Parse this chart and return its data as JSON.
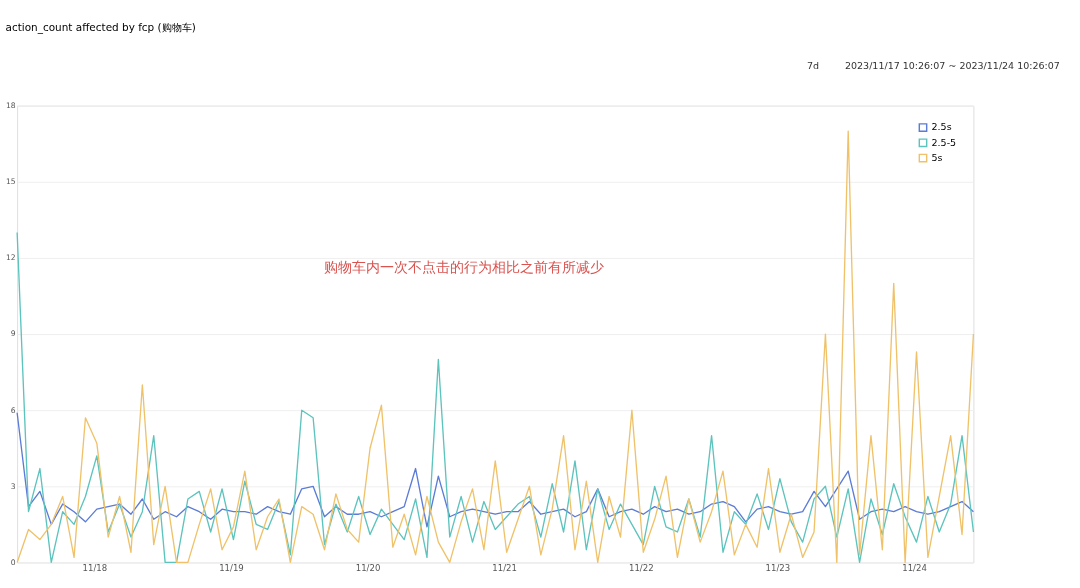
{
  "chart_data": {
    "type": "line",
    "title": "action_count affected by fcp (购物车)",
    "annotations": [
      "购物车内一次不点击的行为相比之前有所减少",
      "7d",
      "2023/11/17 10:26:07 ~ 2023/11/24 10:26:07"
    ],
    "x": [
      "2023-11-17T10:26",
      "2023-11-17T12:26",
      "2023-11-17T14:26",
      "2023-11-17T16:26",
      "2023-11-17T18:26",
      "2023-11-17T20:26",
      "2023-11-17T22:26",
      "2023-11-18T00:26",
      "2023-11-18T02:26",
      "2023-11-18T04:26",
      "2023-11-18T06:26",
      "2023-11-18T08:26",
      "2023-11-18T10:26",
      "2023-11-18T12:26",
      "2023-11-18T14:26",
      "2023-11-18T16:26",
      "2023-11-18T18:26",
      "2023-11-18T20:26",
      "2023-11-18T22:26",
      "2023-11-19T00:26",
      "2023-11-19T02:26",
      "2023-11-19T04:26",
      "2023-11-19T06:26",
      "2023-11-19T08:26",
      "2023-11-19T10:26",
      "2023-11-19T12:26",
      "2023-11-19T14:26",
      "2023-11-19T16:26",
      "2023-11-19T18:26",
      "2023-11-19T20:26",
      "2023-11-19T22:26",
      "2023-11-20T00:26",
      "2023-11-20T02:26",
      "2023-11-20T04:26",
      "2023-11-20T06:26",
      "2023-11-20T08:26",
      "2023-11-20T10:26",
      "2023-11-20T12:26",
      "2023-11-20T14:26",
      "2023-11-20T16:26",
      "2023-11-20T18:26",
      "2023-11-20T20:26",
      "2023-11-20T22:26",
      "2023-11-21T00:26",
      "2023-11-21T02:26",
      "2023-11-21T04:26",
      "2023-11-21T06:26",
      "2023-11-21T08:26",
      "2023-11-21T10:26",
      "2023-11-21T12:26",
      "2023-11-21T14:26",
      "2023-11-21T16:26",
      "2023-11-21T18:26",
      "2023-11-21T20:26",
      "2023-11-21T22:26",
      "2023-11-22T00:26",
      "2023-11-22T02:26",
      "2023-11-22T04:26",
      "2023-11-22T06:26",
      "2023-11-22T08:26",
      "2023-11-22T10:26",
      "2023-11-22T12:26",
      "2023-11-22T14:26",
      "2023-11-22T16:26",
      "2023-11-22T18:26",
      "2023-11-22T20:26",
      "2023-11-22T22:26",
      "2023-11-23T00:26",
      "2023-11-23T02:26",
      "2023-11-23T04:26",
      "2023-11-23T06:26",
      "2023-11-23T08:26",
      "2023-11-23T10:26",
      "2023-11-23T12:26",
      "2023-11-23T14:26",
      "2023-11-23T16:26",
      "2023-11-23T18:26",
      "2023-11-23T20:26",
      "2023-11-23T22:26",
      "2023-11-24T00:26",
      "2023-11-24T02:26",
      "2023-11-24T04:26",
      "2023-11-24T06:26",
      "2023-11-24T08:26",
      "2023-11-24T10:26"
    ],
    "series": [
      {
        "name": "2.5s",
        "color": "#5b7bd6",
        "values": [
          5.9,
          2.2,
          2.8,
          1.5,
          2.3,
          2.0,
          1.6,
          2.1,
          2.2,
          2.3,
          1.9,
          2.5,
          1.7,
          2.0,
          1.8,
          2.2,
          2.0,
          1.7,
          2.1,
          2.0,
          2.0,
          1.9,
          2.2,
          2.0,
          1.9,
          2.9,
          3.0,
          1.8,
          2.2,
          1.9,
          1.9,
          2.0,
          1.8,
          2.0,
          2.2,
          3.7,
          1.4,
          3.4,
          1.8,
          2.0,
          2.1,
          2.0,
          1.9,
          2.0,
          2.0,
          2.4,
          1.9,
          2.0,
          2.1,
          1.8,
          2.0,
          2.9,
          1.8,
          2.0,
          2.1,
          1.9,
          2.2,
          2.0,
          2.1,
          1.9,
          2.0,
          2.3,
          2.4,
          2.2,
          1.6,
          2.1,
          2.2,
          2.0,
          1.9,
          2.0,
          2.8,
          2.2,
          2.9,
          3.6,
          1.7,
          2.0,
          2.1,
          2.0,
          2.2,
          2.0,
          1.9,
          2.0,
          2.2,
          2.4,
          2.0
        ]
      },
      {
        "name": "2.5-5",
        "color": "#5cc3bd",
        "values": [
          13.0,
          2.0,
          3.7,
          0,
          2.0,
          1.5,
          2.6,
          4.2,
          1.2,
          2.3,
          1.0,
          2.0,
          5.0,
          0,
          0,
          2.5,
          2.8,
          1.2,
          2.9,
          0.9,
          3.2,
          1.5,
          1.3,
          2.4,
          0.3,
          6.0,
          5.7,
          0.7,
          2.3,
          1.2,
          2.6,
          1.1,
          2.1,
          1.5,
          0.9,
          2.5,
          0.2,
          8.0,
          1.0,
          2.6,
          0.8,
          2.4,
          1.3,
          1.8,
          2.3,
          2.6,
          1.0,
          3.1,
          1.2,
          4.0,
          0.5,
          2.9,
          1.3,
          2.3,
          1.5,
          0.7,
          3.0,
          1.4,
          1.2,
          2.5,
          1.0,
          5.0,
          0.4,
          2.0,
          1.5,
          2.7,
          1.3,
          3.3,
          1.6,
          0.8,
          2.5,
          3.0,
          1.0,
          2.9,
          0,
          2.5,
          1.1,
          3.1,
          1.8,
          0.8,
          2.6,
          1.2,
          2.3,
          5.0,
          1.2
        ]
      },
      {
        "name": "5s",
        "color": "#efc26a",
        "values": [
          0,
          1.3,
          0.9,
          1.5,
          2.6,
          0.2,
          5.7,
          4.7,
          1.0,
          2.6,
          0.4,
          7.0,
          0.7,
          3.0,
          0,
          0,
          1.5,
          2.9,
          0.5,
          1.4,
          3.6,
          0.5,
          1.8,
          2.5,
          0,
          2.2,
          1.9,
          0.5,
          2.7,
          1.3,
          0.8,
          4.5,
          6.2,
          0.6,
          1.9,
          0.3,
          2.6,
          0.8,
          0,
          1.6,
          2.9,
          0.5,
          4.0,
          0.4,
          1.7,
          3.0,
          0.3,
          2.1,
          5.0,
          0.5,
          3.2,
          0,
          2.6,
          1.0,
          6.0,
          0.4,
          1.7,
          3.4,
          0.2,
          2.5,
          0.8,
          2.0,
          3.6,
          0.3,
          1.5,
          0.6,
          3.7,
          0.4,
          1.9,
          0.2,
          1.2,
          9.0,
          0,
          17.0,
          0.3,
          5.0,
          0.5,
          11.0,
          0,
          8.3,
          0.2,
          2.6,
          5.0,
          1.1,
          9.0
        ]
      }
    ],
    "xlim": [
      "2023-11-17T10:26",
      "2023-11-24T10:26"
    ],
    "xticks": [
      {
        "value": "2023-11-18",
        "label": "11/18"
      },
      {
        "value": "2023-11-19",
        "label": "11/19"
      },
      {
        "value": "2023-11-20",
        "label": "11/20"
      },
      {
        "value": "2023-11-21",
        "label": "11/21"
      },
      {
        "value": "2023-11-22",
        "label": "11/22"
      },
      {
        "value": "2023-11-23",
        "label": "11/23"
      },
      {
        "value": "2023-11-24",
        "label": "11/24"
      }
    ],
    "ylim": [
      0,
      18
    ],
    "yticks": [
      0,
      3,
      6,
      9,
      12,
      15,
      18
    ],
    "grid": "y",
    "legend": "top right",
    "line_style": "solid",
    "marker": "none"
  }
}
